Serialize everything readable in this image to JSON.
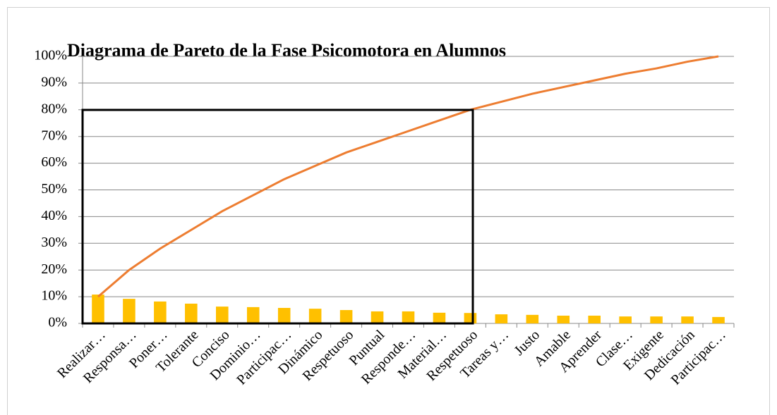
{
  "chart_data": {
    "type": "pareto",
    "title": "Diagrama de Pareto de la Fase Psicomotora en Alumnos",
    "categories": [
      "Realizar…",
      "Responsa…",
      "Poner…",
      "Tolerante",
      "Conciso",
      "Dominio…",
      "Participac…",
      "Dinámico",
      "Respetuoso",
      "Puntual",
      "Responde…",
      "Material…",
      "Respetuoso",
      "Tareas y…",
      "Justo",
      "Amable",
      "Aprender",
      "Clase…",
      "Exigente",
      "Dedicación",
      "Participac…"
    ],
    "series": [
      {
        "kind": "bar",
        "color": "#ffc000",
        "values": [
          10.8,
          9.2,
          8.2,
          7.4,
          6.3,
          6.1,
          5.8,
          5.5,
          5.0,
          4.5,
          4.5,
          4.0,
          3.9,
          3.4,
          3.2,
          2.9,
          2.9,
          2.6,
          2.6,
          2.6,
          2.4
        ]
      },
      {
        "kind": "line",
        "color": "#ed7d31",
        "values": [
          10,
          20,
          28,
          35,
          42,
          48,
          54,
          59,
          64,
          68,
          72,
          76,
          80,
          83,
          86,
          88.5,
          91,
          93.5,
          95.5,
          98,
          100
        ]
      }
    ],
    "ylim": [
      0,
      100
    ],
    "yticks": [
      {
        "value": 0,
        "label": "0%"
      },
      {
        "value": 10,
        "label": "10%"
      },
      {
        "value": 20,
        "label": "20%"
      },
      {
        "value": 30,
        "label": "30%"
      },
      {
        "value": 40,
        "label": "40%"
      },
      {
        "value": 50,
        "label": "50%"
      },
      {
        "value": 60,
        "label": "60%"
      },
      {
        "value": 70,
        "label": "70%"
      },
      {
        "value": 80,
        "label": "80%"
      },
      {
        "value": 90,
        "label": "90%"
      },
      {
        "value": 100,
        "label": "100%"
      }
    ],
    "grid": true
  }
}
